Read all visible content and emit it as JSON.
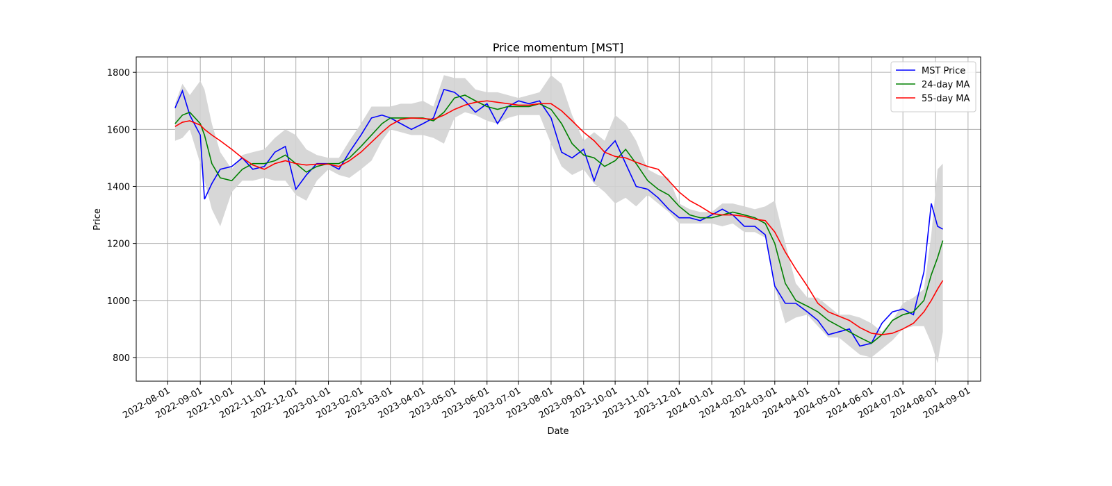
{
  "chart_data": {
    "type": "line",
    "title": "Price momentum [MST]",
    "xlabel": "Date",
    "ylabel": "Price",
    "x": [
      "2022-08-08",
      "2022-08-15",
      "2022-08-22",
      "2022-09-01",
      "2022-09-05",
      "2022-09-12",
      "2022-09-20",
      "2022-10-01",
      "2022-10-11",
      "2022-10-21",
      "2022-11-01",
      "2022-11-11",
      "2022-11-21",
      "2022-12-01",
      "2022-12-11",
      "2022-12-21",
      "2023-01-01",
      "2023-01-11",
      "2023-01-21",
      "2023-02-01",
      "2023-02-11",
      "2023-02-21",
      "2023-03-01",
      "2023-03-11",
      "2023-03-21",
      "2023-04-01",
      "2023-04-11",
      "2023-04-21",
      "2023-05-01",
      "2023-05-11",
      "2023-05-21",
      "2023-06-01",
      "2023-06-11",
      "2023-06-21",
      "2023-07-01",
      "2023-07-11",
      "2023-07-21",
      "2023-08-01",
      "2023-08-11",
      "2023-08-21",
      "2023-09-01",
      "2023-09-11",
      "2023-09-21",
      "2023-10-01",
      "2023-10-11",
      "2023-10-21",
      "2023-11-01",
      "2023-11-11",
      "2023-11-21",
      "2023-12-01",
      "2023-12-11",
      "2023-12-21",
      "2024-01-01",
      "2024-01-11",
      "2024-01-21",
      "2024-02-01",
      "2024-02-11",
      "2024-02-21",
      "2024-03-01",
      "2024-03-11",
      "2024-03-21",
      "2024-04-01",
      "2024-04-11",
      "2024-04-21",
      "2024-05-01",
      "2024-05-11",
      "2024-05-21",
      "2024-06-01",
      "2024-06-11",
      "2024-06-21",
      "2024-07-01",
      "2024-07-11",
      "2024-07-21",
      "2024-07-28",
      "2024-08-03",
      "2024-08-08"
    ],
    "band": {
      "color": "#d3d3d3",
      "upper": [
        1690,
        1760,
        1720,
        1770,
        1740,
        1620,
        1520,
        1460,
        1510,
        1520,
        1530,
        1570,
        1600,
        1580,
        1530,
        1510,
        1500,
        1500,
        1560,
        1620,
        1680,
        1680,
        1680,
        1690,
        1690,
        1700,
        1680,
        1790,
        1780,
        1780,
        1740,
        1730,
        1730,
        1720,
        1710,
        1720,
        1730,
        1790,
        1760,
        1650,
        1560,
        1590,
        1560,
        1650,
        1620,
        1560,
        1460,
        1440,
        1430,
        1340,
        1320,
        1310,
        1310,
        1340,
        1340,
        1330,
        1320,
        1330,
        1350,
        1200,
        1060,
        1010,
        1010,
        980,
        950,
        950,
        940,
        920,
        890,
        930,
        990,
        1010,
        1040,
        1230,
        1460,
        1480
      ],
      "lower": [
        1560,
        1570,
        1600,
        1480,
        1420,
        1320,
        1260,
        1380,
        1420,
        1420,
        1430,
        1420,
        1420,
        1370,
        1350,
        1420,
        1460,
        1440,
        1430,
        1460,
        1490,
        1560,
        1600,
        1590,
        1580,
        1580,
        1570,
        1550,
        1640,
        1660,
        1650,
        1630,
        1620,
        1640,
        1650,
        1650,
        1650,
        1550,
        1470,
        1440,
        1460,
        1410,
        1380,
        1340,
        1360,
        1330,
        1370,
        1340,
        1310,
        1270,
        1270,
        1270,
        1270,
        1260,
        1270,
        1240,
        1240,
        1220,
        1050,
        920,
        940,
        950,
        910,
        870,
        870,
        840,
        810,
        800,
        830,
        860,
        900,
        910,
        910,
        850,
        780,
        890
      ]
    },
    "series": [
      {
        "name": "MST Price",
        "color": "#0000ff",
        "values": [
          1675,
          1735,
          1650,
          1580,
          1355,
          1410,
          1460,
          1470,
          1500,
          1460,
          1470,
          1520,
          1540,
          1390,
          1440,
          1480,
          1480,
          1460,
          1520,
          1580,
          1640,
          1650,
          1640,
          1620,
          1600,
          1620,
          1640,
          1740,
          1730,
          1700,
          1660,
          1690,
          1620,
          1680,
          1700,
          1690,
          1700,
          1640,
          1520,
          1500,
          1530,
          1420,
          1520,
          1560,
          1480,
          1400,
          1390,
          1360,
          1320,
          1290,
          1290,
          1280,
          1300,
          1320,
          1300,
          1260,
          1260,
          1230,
          1050,
          990,
          990,
          960,
          930,
          880,
          890,
          900,
          840,
          850,
          920,
          960,
          970,
          950,
          1100,
          1340,
          1260,
          1250
        ]
      },
      {
        "name": "24-day MA",
        "color": "#008000",
        "values": [
          1620,
          1650,
          1660,
          1620,
          1580,
          1480,
          1430,
          1420,
          1460,
          1480,
          1480,
          1490,
          1510,
          1480,
          1450,
          1470,
          1480,
          1480,
          1500,
          1540,
          1580,
          1620,
          1640,
          1640,
          1640,
          1640,
          1630,
          1660,
          1710,
          1720,
          1700,
          1680,
          1670,
          1680,
          1680,
          1680,
          1690,
          1670,
          1620,
          1550,
          1510,
          1500,
          1470,
          1490,
          1530,
          1480,
          1420,
          1390,
          1370,
          1330,
          1300,
          1290,
          1290,
          1300,
          1310,
          1300,
          1290,
          1270,
          1200,
          1060,
          1000,
          980,
          960,
          930,
          910,
          890,
          870,
          850,
          880,
          930,
          950,
          960,
          1000,
          1090,
          1150,
          1210
        ]
      },
      {
        "name": "55-day MA",
        "color": "#ff0000",
        "values": [
          1610,
          1625,
          1630,
          1615,
          1600,
          1580,
          1560,
          1530,
          1500,
          1475,
          1460,
          1480,
          1490,
          1480,
          1475,
          1478,
          1478,
          1470,
          1490,
          1520,
          1555,
          1590,
          1615,
          1635,
          1640,
          1638,
          1635,
          1650,
          1670,
          1685,
          1695,
          1700,
          1695,
          1690,
          1685,
          1685,
          1690,
          1690,
          1665,
          1630,
          1590,
          1560,
          1520,
          1505,
          1500,
          1485,
          1470,
          1460,
          1420,
          1380,
          1350,
          1330,
          1305,
          1300,
          1300,
          1295,
          1285,
          1280,
          1240,
          1170,
          1110,
          1050,
          990,
          960,
          945,
          930,
          905,
          885,
          880,
          885,
          900,
          920,
          960,
          1000,
          1040,
          1070
        ]
      }
    ],
    "xlim": [
      "2022-07-02",
      "2024-09-13"
    ],
    "xticks": [
      "2022-08-01",
      "2022-09-01",
      "2022-10-01",
      "2022-11-01",
      "2022-12-01",
      "2023-01-01",
      "2023-02-01",
      "2023-03-01",
      "2023-04-01",
      "2023-05-01",
      "2023-06-01",
      "2023-07-01",
      "2023-08-01",
      "2023-09-01",
      "2023-10-01",
      "2023-11-01",
      "2023-12-01",
      "2024-01-01",
      "2024-02-01",
      "2024-03-01",
      "2024-04-01",
      "2024-05-01",
      "2024-06-01",
      "2024-07-01",
      "2024-08-01",
      "2024-09-01"
    ],
    "ylim": [
      717,
      1854
    ],
    "yticks": [
      800,
      1000,
      1200,
      1400,
      1600,
      1800
    ],
    "grid": true,
    "legend": "upper right"
  }
}
